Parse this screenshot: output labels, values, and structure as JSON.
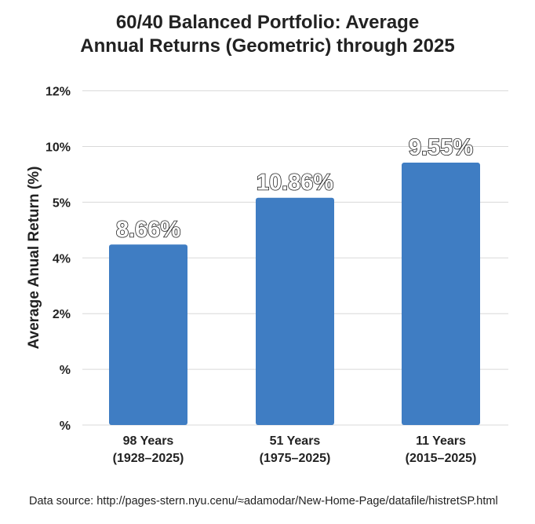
{
  "chart_data": {
    "type": "bar",
    "title_lines": [
      "60/40 Balanced Portfolio: Average",
      "Annual Returns (Geometric) through 2025"
    ],
    "ylabel": "Average Anual Return (%)",
    "xlabel": "",
    "y_tick_labels": [
      "%",
      "%",
      "2%",
      "4%",
      "5%",
      "10%",
      "12%"
    ],
    "categories": [
      [
        "98 Years",
        "(1928–2025)"
      ],
      [
        "51 Years",
        "(1975–2025)"
      ],
      [
        "11 Years",
        "(2015–2025)"
      ]
    ],
    "values": [
      8.66,
      10.86,
      9.55
    ],
    "data_labels": [
      "8.66%",
      "10.86%",
      "9.55%"
    ],
    "grid": true,
    "legend": "none",
    "colors": {
      "bar": "#3f7dc3",
      "grid": "#d9d9d9",
      "text": "#222222"
    }
  },
  "footer": {
    "source": "Data source: http://pages-stern.nyu.cenu/≈adamodar/New-Home-Page/datafile/histretSP.html"
  }
}
